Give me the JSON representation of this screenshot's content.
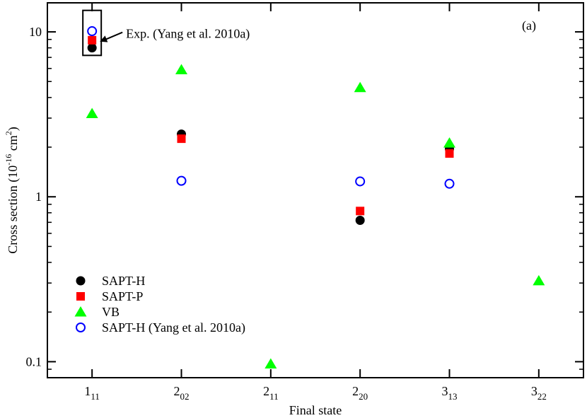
{
  "chart_data": {
    "type": "scatter",
    "title": "",
    "panel_label": "(a)",
    "xlabel": "Final state",
    "ylabel": {
      "main": "Cross section (10",
      "exp1": "-16",
      "mid": " cm",
      "exp2": "2",
      "close": ")"
    },
    "yscale": "log",
    "ylim": [
      0.08,
      15
    ],
    "yticks": [
      {
        "value": 0.1,
        "label": "0.1"
      },
      {
        "value": 1,
        "label": "1"
      },
      {
        "value": 10,
        "label": "10"
      }
    ],
    "categories": [
      {
        "base": "1",
        "sub": "11"
      },
      {
        "base": "2",
        "sub": "02"
      },
      {
        "base": "2",
        "sub": "11"
      },
      {
        "base": "2",
        "sub": "20"
      },
      {
        "base": "3",
        "sub": "13"
      },
      {
        "base": "3",
        "sub": "22"
      }
    ],
    "series": [
      {
        "name": "SAPT-H",
        "marker": "circle-filled",
        "color": "#000000",
        "values": [
          8.0,
          2.4,
          null,
          0.72,
          1.95,
          null
        ]
      },
      {
        "name": "SAPT-P",
        "marker": "square-filled",
        "color": "#ff0000",
        "values": [
          8.9,
          2.25,
          null,
          0.82,
          1.83,
          null
        ]
      },
      {
        "name": "VB",
        "marker": "triangle-filled",
        "color": "#00ff00",
        "values": [
          3.2,
          5.9,
          0.097,
          4.6,
          2.12,
          0.31
        ]
      },
      {
        "name": "SAPT-H (Yang et al. 2010a)",
        "marker": "circle-open",
        "color": "#0000ff",
        "values": [
          10.1,
          1.25,
          null,
          1.24,
          1.2,
          null
        ]
      }
    ],
    "annotation": {
      "text": "Exp. (Yang et al. 2010a)",
      "category_index": 0,
      "range": [
        7.2,
        13.5
      ]
    },
    "legend_position": "lower-left"
  }
}
